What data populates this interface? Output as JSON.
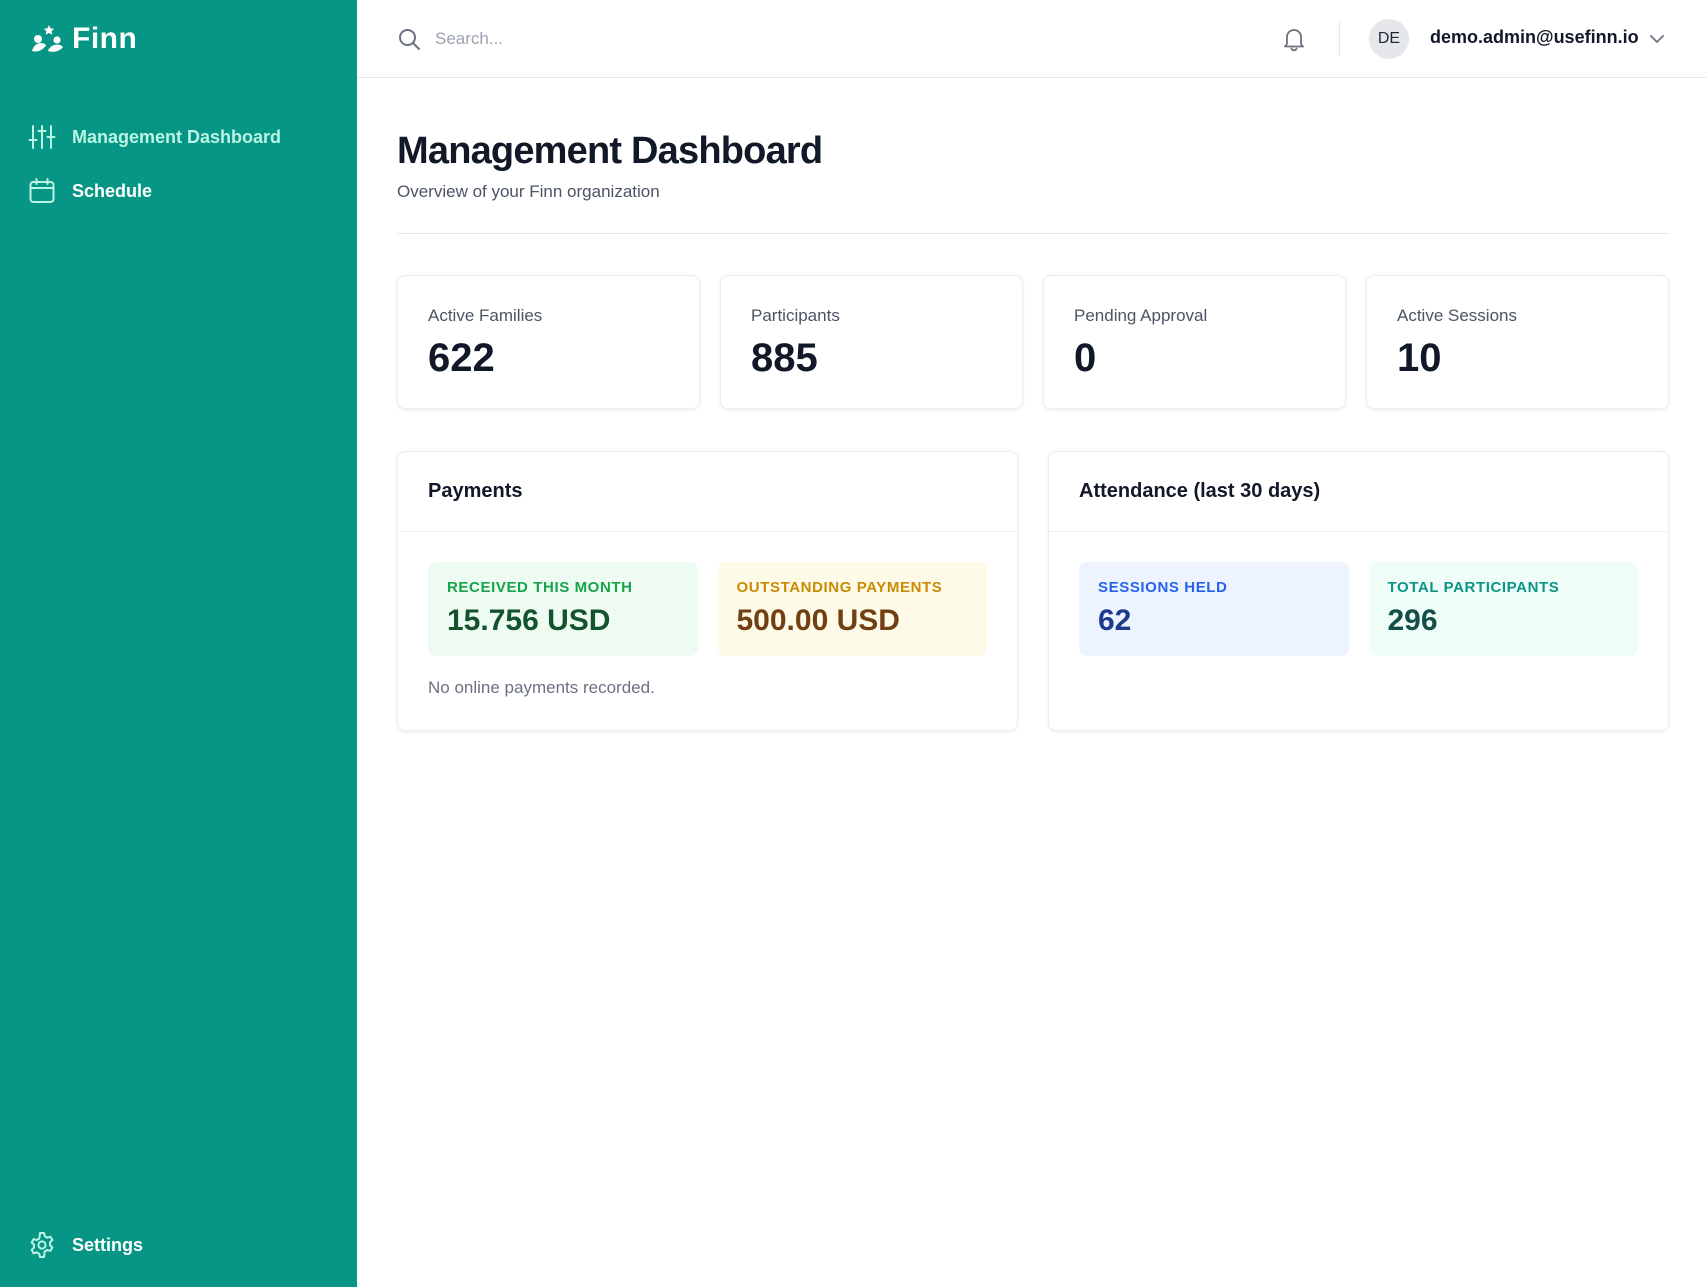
{
  "brand": {
    "name": "Finn",
    "accent": "#079585",
    "active_nav_text": "#b9f5e4"
  },
  "sidebar": {
    "items": [
      {
        "label": "Management Dashboard",
        "icon": "sliders-icon",
        "active": true
      },
      {
        "label": "Schedule",
        "icon": "calendar-icon",
        "active": false
      }
    ],
    "settings_label": "Settings"
  },
  "topbar": {
    "search_placeholder": "Search...",
    "avatar_initials": "DE",
    "user_email": "demo.admin@usefinn.io"
  },
  "page": {
    "title": "Management Dashboard",
    "subtitle": "Overview of your Finn organization"
  },
  "stats": [
    {
      "label": "Active Families",
      "value": "622"
    },
    {
      "label": "Participants",
      "value": "885"
    },
    {
      "label": "Pending Approval",
      "value": "0"
    },
    {
      "label": "Active Sessions",
      "value": "10"
    }
  ],
  "payments": {
    "title": "Payments",
    "received": {
      "label": "Received this month",
      "value": "15.756 USD"
    },
    "outstanding": {
      "label": "Outstanding payments",
      "value": "500.00 USD"
    },
    "note": "No online payments recorded."
  },
  "attendance": {
    "title": "Attendance (last 30 days)",
    "sessions": {
      "label": "Sessions held",
      "value": "62"
    },
    "participants": {
      "label": "Total participants",
      "value": "296"
    }
  }
}
